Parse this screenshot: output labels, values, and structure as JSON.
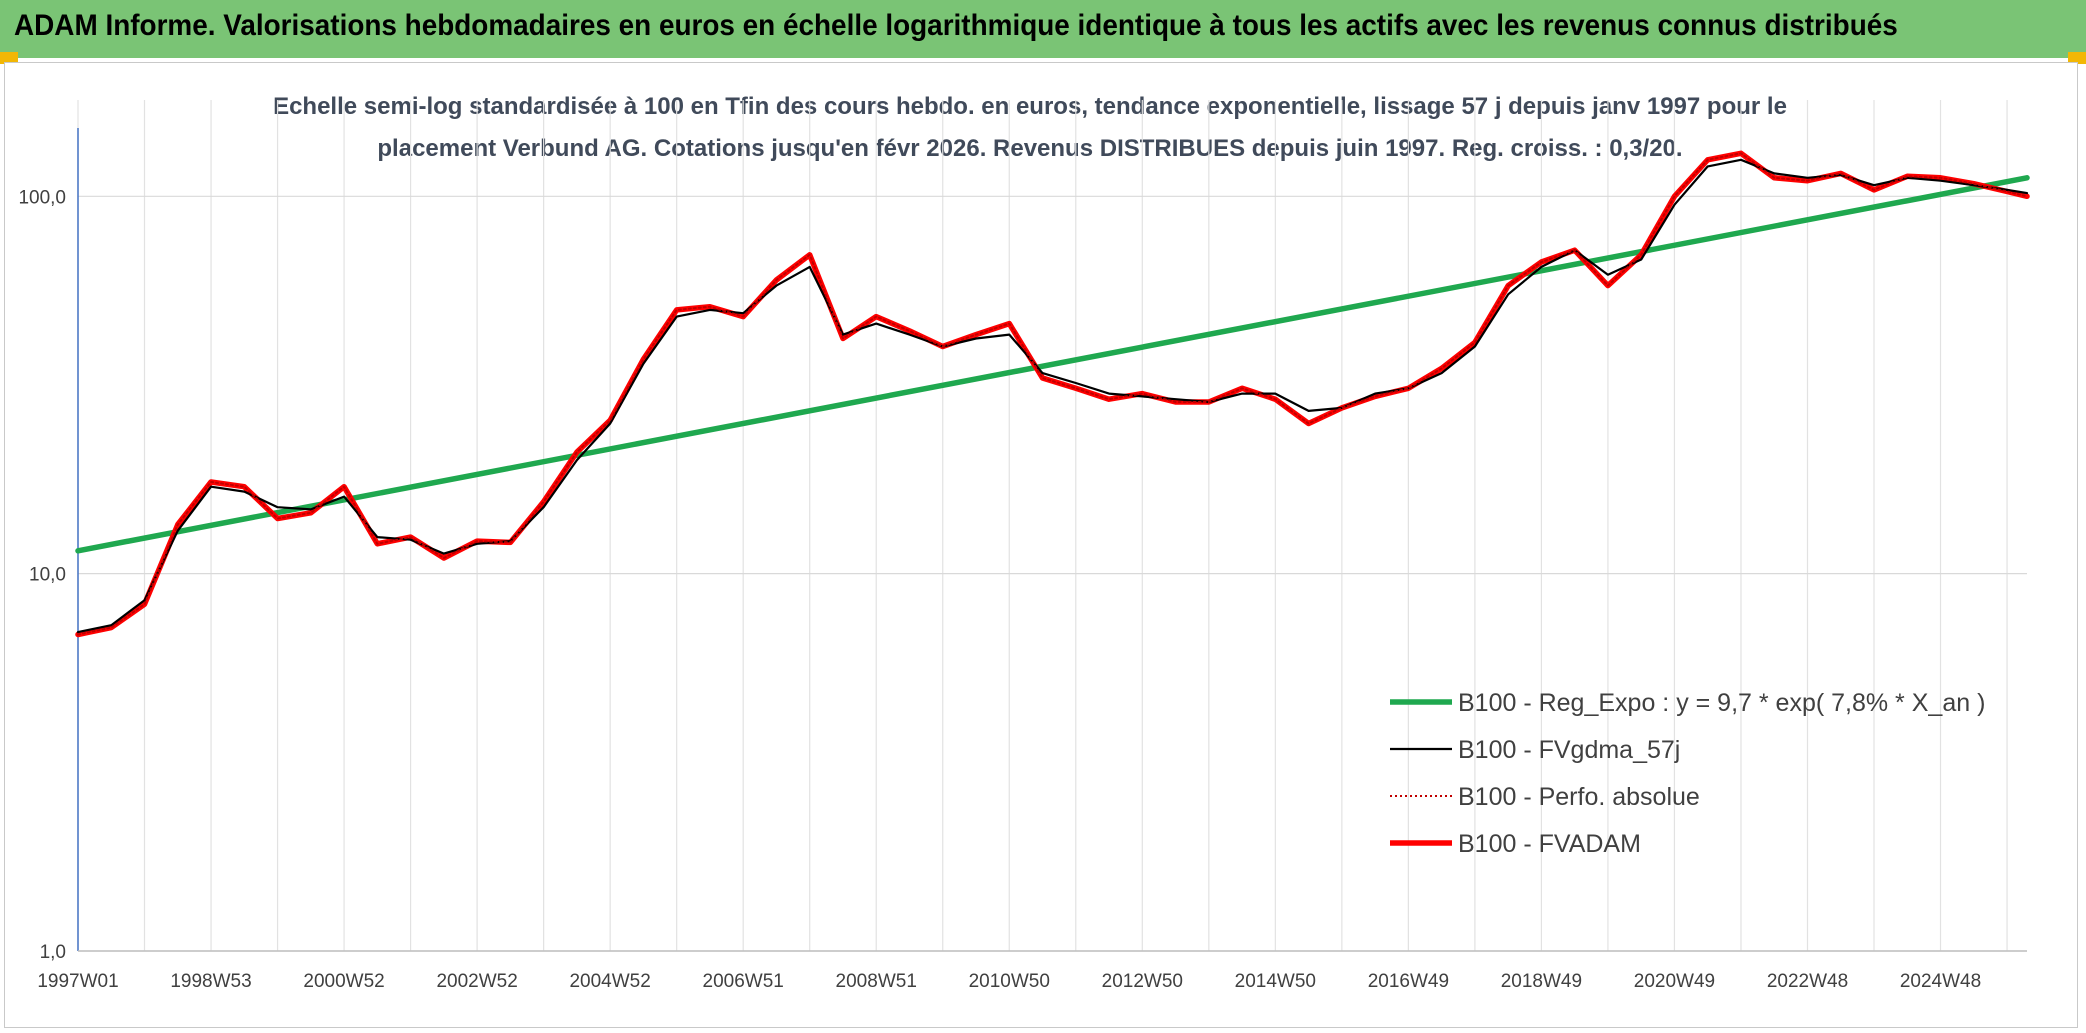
{
  "banner": {
    "title": "ADAM Informe. Valorisations hebdomadaires en euros en échelle logarithmique identique à tous les actifs avec les revenus connus distribués",
    "background": "#7ac475"
  },
  "chart_data": {
    "type": "line",
    "title_lines": [
      "Echelle semi-log standardisée à 100 en Tfin des cours hebdo. en euros, tendance exponentielle, lissage 57 j depuis janv 1997 pour le",
      "placement Verbund AG. Cotations jusqu'en févr 2026. Revenus DISTRIBUES depuis juin 1997. Reg. croiss. : 0,3/20."
    ],
    "y_scale": "log",
    "ylim": [
      1,
      180
    ],
    "xlim": [
      1997.0,
      2026.3
    ],
    "grid": true,
    "legend_position": "bottom-right",
    "y_ticks": [
      {
        "value": 1,
        "label": "1,0"
      },
      {
        "value": 10,
        "label": "10,0"
      },
      {
        "value": 100,
        "label": "100,0"
      }
    ],
    "x_ticks": [
      {
        "value": 1997.0,
        "label": "1997W01"
      },
      {
        "value": 1999.0,
        "label": "1998W53"
      },
      {
        "value": 2001.0,
        "label": "2000W52"
      },
      {
        "value": 2003.0,
        "label": "2002W52"
      },
      {
        "value": 2005.0,
        "label": "2004W52"
      },
      {
        "value": 2007.0,
        "label": "2006W51"
      },
      {
        "value": 2009.0,
        "label": "2008W51"
      },
      {
        "value": 2011.0,
        "label": "2010W50"
      },
      {
        "value": 2013.0,
        "label": "2012W50"
      },
      {
        "value": 2015.0,
        "label": "2014W50"
      },
      {
        "value": 2017.0,
        "label": "2016W49"
      },
      {
        "value": 2019.0,
        "label": "2018W49"
      },
      {
        "value": 2021.0,
        "label": "2020W49"
      },
      {
        "value": 2023.0,
        "label": "2022W48"
      },
      {
        "value": 2025.0,
        "label": "2024W48"
      }
    ],
    "series": [
      {
        "name": "B100 - Reg_Expo : y = 9,7 * exp( 7,8% *  X_an )",
        "color": "#1fa84f",
        "style": "thick",
        "x": [
          1997.0,
          2026.3
        ],
        "y": [
          11.5,
          112
        ]
      },
      {
        "name": "B100 - FVgdma_57j",
        "color": "#000000",
        "style": "thin",
        "x": [
          1997.0,
          1997.5,
          1998.0,
          1998.5,
          1999.0,
          1999.5,
          2000.0,
          2000.5,
          2001.0,
          2001.5,
          2002.0,
          2002.5,
          2003.0,
          2003.5,
          2004.0,
          2004.5,
          2005.0,
          2005.5,
          2006.0,
          2006.5,
          2007.0,
          2007.5,
          2008.0,
          2008.5,
          2009.0,
          2009.5,
          2010.0,
          2010.5,
          2011.0,
          2011.5,
          2012.0,
          2012.5,
          2013.0,
          2013.5,
          2014.0,
          2014.5,
          2015.0,
          2015.5,
          2016.0,
          2016.5,
          2017.0,
          2017.5,
          2018.0,
          2018.5,
          2019.0,
          2019.5,
          2020.0,
          2020.5,
          2021.0,
          2021.5,
          2022.0,
          2022.5,
          2023.0,
          2023.5,
          2024.0,
          2024.5,
          2025.0,
          2025.5,
          2026.0,
          2026.3
        ],
        "y": [
          7.0,
          7.3,
          8.5,
          13.0,
          17.0,
          16.5,
          15.0,
          14.8,
          16.0,
          12.5,
          12.3,
          11.3,
          12.0,
          12.2,
          15.0,
          20.0,
          25.0,
          36.0,
          48.0,
          50.0,
          49.0,
          58.0,
          65.0,
          43.0,
          46.0,
          43.0,
          40.0,
          42.0,
          43.0,
          34.0,
          32.0,
          30.0,
          29.5,
          29.0,
          28.5,
          30.0,
          30.0,
          27.0,
          27.5,
          30.0,
          31.0,
          34.0,
          40.0,
          55.0,
          65.0,
          72.0,
          62.0,
          68.0,
          95.0,
          120.0,
          125.0,
          115.0,
          112.0,
          114.0,
          107.0,
          112.0,
          110.0,
          107.0,
          104.0,
          102.0
        ]
      },
      {
        "name": "B100 - Perfo. absolue",
        "color": "#c00000",
        "style": "dotted",
        "x": [
          1997.0,
          1997.5,
          1998.0,
          1998.5,
          1999.0,
          1999.5,
          2000.0,
          2000.5,
          2001.0,
          2001.5,
          2002.0,
          2002.5,
          2003.0,
          2003.5,
          2004.0,
          2004.5,
          2005.0,
          2005.5,
          2006.0,
          2006.5,
          2007.0,
          2007.5,
          2008.0,
          2008.5,
          2009.0,
          2009.5,
          2010.0,
          2010.5,
          2011.0,
          2011.5,
          2012.0,
          2012.5,
          2013.0,
          2013.5,
          2014.0,
          2014.5,
          2015.0,
          2015.5,
          2016.0,
          2016.5,
          2017.0,
          2017.5,
          2018.0,
          2018.5,
          2019.0,
          2019.5,
          2020.0,
          2020.5,
          2021.0,
          2021.5,
          2022.0,
          2022.5,
          2023.0,
          2023.5,
          2024.0,
          2024.5,
          2025.0,
          2025.5,
          2026.0,
          2026.3
        ],
        "y": [
          6.9,
          7.2,
          8.3,
          13.5,
          17.5,
          17.0,
          14.0,
          14.5,
          17.0,
          12.0,
          12.5,
          11.0,
          12.2,
          12.1,
          15.5,
          21.0,
          25.5,
          37.0,
          50.0,
          51.0,
          48.0,
          60.0,
          70.0,
          42.0,
          48.0,
          44.0,
          40.0,
          43.0,
          46.0,
          33.0,
          31.0,
          29.0,
          30.0,
          28.5,
          28.5,
          31.0,
          29.0,
          25.0,
          27.5,
          29.5,
          31.0,
          35.0,
          41.0,
          58.0,
          67.0,
          72.0,
          58.0,
          70.0,
          100.0,
          125.0,
          130.0,
          112.0,
          110.0,
          115.0,
          104.0,
          113.0,
          112.0,
          108.0,
          103.0,
          100.0
        ]
      },
      {
        "name": "B100 - FVADAM",
        "color": "#ff0000",
        "style": "thick",
        "x": [
          1997.0,
          1997.5,
          1998.0,
          1998.5,
          1999.0,
          1999.5,
          2000.0,
          2000.5,
          2001.0,
          2001.5,
          2002.0,
          2002.5,
          2003.0,
          2003.5,
          2004.0,
          2004.5,
          2005.0,
          2005.5,
          2006.0,
          2006.5,
          2007.0,
          2007.5,
          2008.0,
          2008.5,
          2009.0,
          2009.5,
          2010.0,
          2010.5,
          2011.0,
          2011.5,
          2012.0,
          2012.5,
          2013.0,
          2013.5,
          2014.0,
          2014.5,
          2015.0,
          2015.5,
          2016.0,
          2016.5,
          2017.0,
          2017.5,
          2018.0,
          2018.5,
          2019.0,
          2019.5,
          2020.0,
          2020.5,
          2021.0,
          2021.5,
          2022.0,
          2022.5,
          2023.0,
          2023.5,
          2024.0,
          2024.5,
          2025.0,
          2025.5,
          2026.0,
          2026.3
        ],
        "y": [
          6.9,
          7.2,
          8.3,
          13.5,
          17.5,
          17.0,
          14.0,
          14.5,
          17.0,
          12.0,
          12.5,
          11.0,
          12.2,
          12.1,
          15.5,
          21.0,
          25.5,
          37.0,
          50.0,
          51.0,
          48.0,
          60.0,
          70.0,
          42.0,
          48.0,
          44.0,
          40.0,
          43.0,
          46.0,
          33.0,
          31.0,
          29.0,
          30.0,
          28.5,
          28.5,
          31.0,
          29.0,
          25.0,
          27.5,
          29.5,
          31.0,
          35.0,
          41.0,
          58.0,
          67.0,
          72.0,
          58.0,
          70.0,
          100.0,
          125.0,
          130.0,
          112.0,
          110.0,
          115.0,
          104.0,
          113.0,
          112.0,
          108.0,
          103.0,
          100.0
        ]
      }
    ]
  }
}
